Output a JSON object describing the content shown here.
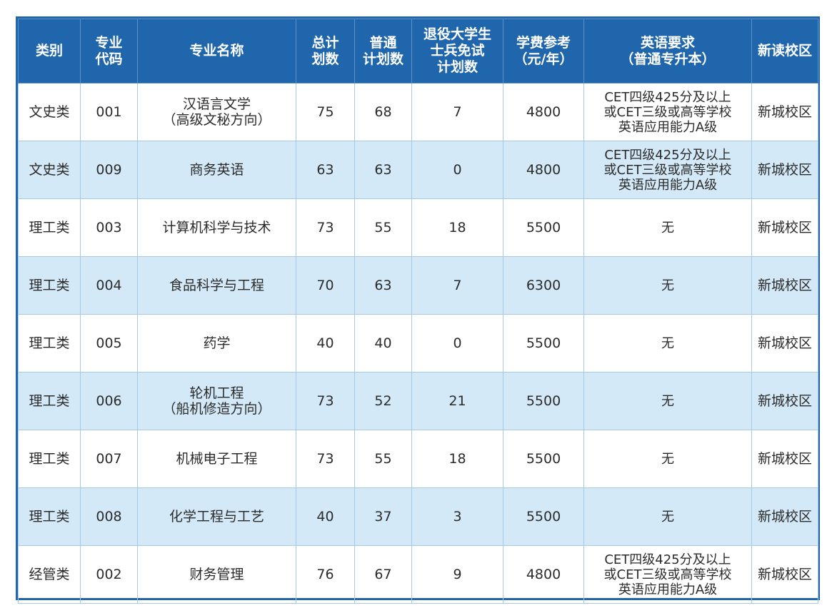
{
  "headers": [
    "类别",
    "专业\n代码",
    "专业名称",
    "总计\n划数",
    "普通\n计划数",
    "退役大学生\n士兵免试\n计划数",
    "学费参考\n（元/年）",
    "英语要求\n（普通专升本）",
    "新读校区"
  ],
  "rows": [
    {
      "category": "文史类",
      "code": "001",
      "major": "汉语言文学\n（高级文秘方向）",
      "total": "75",
      "normal": "68",
      "veteran": "7",
      "tuition": "4800",
      "english": "CET四级425分及以上\n或CET三级或高等学校\n英语应用能力A级",
      "campus": "新城校区"
    },
    {
      "category": "文史类",
      "code": "009",
      "major": "商务英语",
      "total": "63",
      "normal": "63",
      "veteran": "0",
      "tuition": "4800",
      "english": "CET四级425分及以上\n或CET三级或高等学校\n英语应用能力A级",
      "campus": "新城校区"
    },
    {
      "category": "理工类",
      "code": "003",
      "major": "计算机科学与技术",
      "total": "73",
      "normal": "55",
      "veteran": "18",
      "tuition": "5500",
      "english": "无",
      "campus": "新城校区"
    },
    {
      "category": "理工类",
      "code": "004",
      "major": "食品科学与工程",
      "total": "70",
      "normal": "63",
      "veteran": "7",
      "tuition": "6300",
      "english": "无",
      "campus": "新城校区"
    },
    {
      "category": "理工类",
      "code": "005",
      "major": "药学",
      "total": "40",
      "normal": "40",
      "veteran": "0",
      "tuition": "5500",
      "english": "无",
      "campus": "新城校区"
    },
    {
      "category": "理工类",
      "code": "006",
      "major": "轮机工程\n（船机修造方向）",
      "total": "73",
      "normal": "52",
      "veteran": "21",
      "tuition": "5500",
      "english": "无",
      "campus": "新城校区"
    },
    {
      "category": "理工类",
      "code": "007",
      "major": "机械电子工程",
      "total": "73",
      "normal": "55",
      "veteran": "18",
      "tuition": "5500",
      "english": "无",
      "campus": "新城校区"
    },
    {
      "category": "理工类",
      "code": "008",
      "major": "化学工程与工艺",
      "total": "40",
      "normal": "37",
      "veteran": "3",
      "tuition": "5500",
      "english": "无",
      "campus": "新城校区"
    },
    {
      "category": "经管类",
      "code": "002",
      "major": "财务管理",
      "total": "76",
      "normal": "67",
      "veteran": "9",
      "tuition": "4800",
      "english": "CET四级425分及以上\n或CET三级或高等学校\n英语应用能力A级",
      "campus": "新城校区"
    }
  ],
  "colors": {
    "header_bg": "#1f66ad",
    "stripe_bg": "#d4e9f7",
    "border": "#a9c8e2"
  }
}
